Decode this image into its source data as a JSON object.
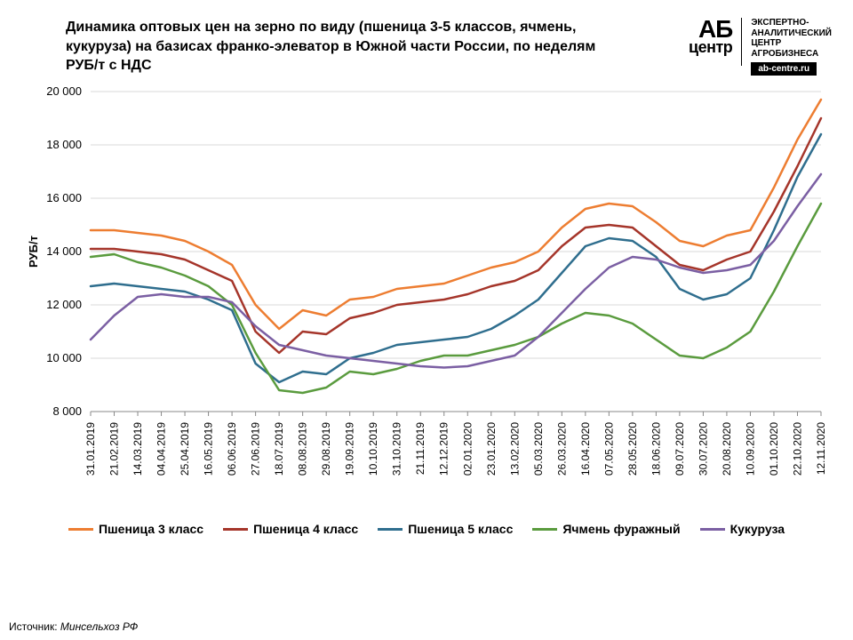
{
  "title": "Динамика оптовых цен на зерно по виду (пшеница 3-5 классов, ячмень, кукуруза) на базисах франко-элеватор  в Южной части России, по неделям РУБ/т с НДС",
  "logo": {
    "mark_ab": "АБ",
    "mark_center": "центр",
    "line1": "ЭКСПЕРТНО-",
    "line2": "АНАЛИТИЧЕСКИЙ",
    "line3": "ЦЕНТР",
    "line4": "АГРОБИЗНЕСА",
    "badge": "ab-centre.ru"
  },
  "chart": {
    "type": "line",
    "background_color": "#ffffff",
    "grid_color": "#d9d9d9",
    "axis_color": "#888888",
    "ylabel": "РУБ/т",
    "ylabel_fontsize": 13,
    "ylim": [
      8000,
      20000
    ],
    "ytick_step": 2000,
    "yticks": [
      "8 000",
      "10 000",
      "12 000",
      "14 000",
      "16 000",
      "18 000",
      "20 000"
    ],
    "x_categories": [
      "31.01.2019",
      "21.02.2019",
      "14.03.2019",
      "04.04.2019",
      "25.04.2019",
      "16.05.2019",
      "06.06.2019",
      "27.06.2019",
      "18.07.2019",
      "08.08.2019",
      "29.08.2019",
      "19.09.2019",
      "10.10.2019",
      "31.10.2019",
      "21.11.2019",
      "12.12.2019",
      "02.01.2020",
      "23.01.2020",
      "13.02.2020",
      "05.03.2020",
      "26.03.2020",
      "16.04.2020",
      "07.05.2020",
      "28.05.2020",
      "18.06.2020",
      "09.07.2020",
      "30.07.2020",
      "20.08.2020",
      "10.09.2020",
      "01.10.2020",
      "22.10.2020",
      "12.11.2020"
    ],
    "line_width": 2.5,
    "series": [
      {
        "name": "Пшеница 3 класс",
        "color": "#ed7d31",
        "values": [
          14800,
          14800,
          14700,
          14600,
          14400,
          14000,
          13500,
          12000,
          11100,
          11800,
          11600,
          12200,
          12300,
          12600,
          12700,
          12800,
          13100,
          13400,
          13600,
          14000,
          14900,
          15600,
          15800,
          15700,
          15100,
          14400,
          14200,
          14600,
          14800,
          16400,
          18200,
          19700
        ]
      },
      {
        "name": "Пшеница 4 класс",
        "color": "#a5352a",
        "values": [
          14100,
          14100,
          14000,
          13900,
          13700,
          13300,
          12900,
          11000,
          10200,
          11000,
          10900,
          11500,
          11700,
          12000,
          12100,
          12200,
          12400,
          12700,
          12900,
          13300,
          14200,
          14900,
          15000,
          14900,
          14200,
          13500,
          13300,
          13700,
          14000,
          15500,
          17200,
          19000
        ]
      },
      {
        "name": "Пшеница 5 класс",
        "color": "#2f6e8e",
        "values": [
          12700,
          12800,
          12700,
          12600,
          12500,
          12200,
          11800,
          9800,
          9100,
          9500,
          9400,
          10000,
          10200,
          10500,
          10600,
          10700,
          10800,
          11100,
          11600,
          12200,
          13200,
          14200,
          14500,
          14400,
          13800,
          12600,
          12200,
          12400,
          13000,
          14800,
          16800,
          18400
        ]
      },
      {
        "name": "Ячмень фуражный",
        "color": "#5a9b3e",
        "values": [
          13800,
          13900,
          13600,
          13400,
          13100,
          12700,
          12000,
          10200,
          8800,
          8700,
          8900,
          9500,
          9400,
          9600,
          9900,
          10100,
          10100,
          10300,
          10500,
          10800,
          11300,
          11700,
          11600,
          11300,
          10700,
          10100,
          10000,
          10400,
          11000,
          12500,
          14200,
          15800
        ]
      },
      {
        "name": "Кукуруза",
        "color": "#7b5fa3",
        "values": [
          10700,
          11600,
          12300,
          12400,
          12300,
          12300,
          12100,
          11200,
          10500,
          10300,
          10100,
          10000,
          9900,
          9800,
          9700,
          9650,
          9700,
          9900,
          10100,
          10800,
          11700,
          12600,
          13400,
          13800,
          13700,
          13400,
          13200,
          13300,
          13500,
          14400,
          15700,
          16900
        ]
      }
    ]
  },
  "legend": [
    {
      "label": "Пшеница 3 класс",
      "color": "#ed7d31"
    },
    {
      "label": "Пшеница 4 класс",
      "color": "#a5352a"
    },
    {
      "label": "Пшеница 5 класс",
      "color": "#2f6e8e"
    },
    {
      "label": "Ячмень фуражный",
      "color": "#5a9b3e"
    },
    {
      "label": "Кукуруза",
      "color": "#7b5fa3"
    }
  ],
  "source": {
    "label": "Источник:  ",
    "value": "Минсельхоз РФ"
  }
}
